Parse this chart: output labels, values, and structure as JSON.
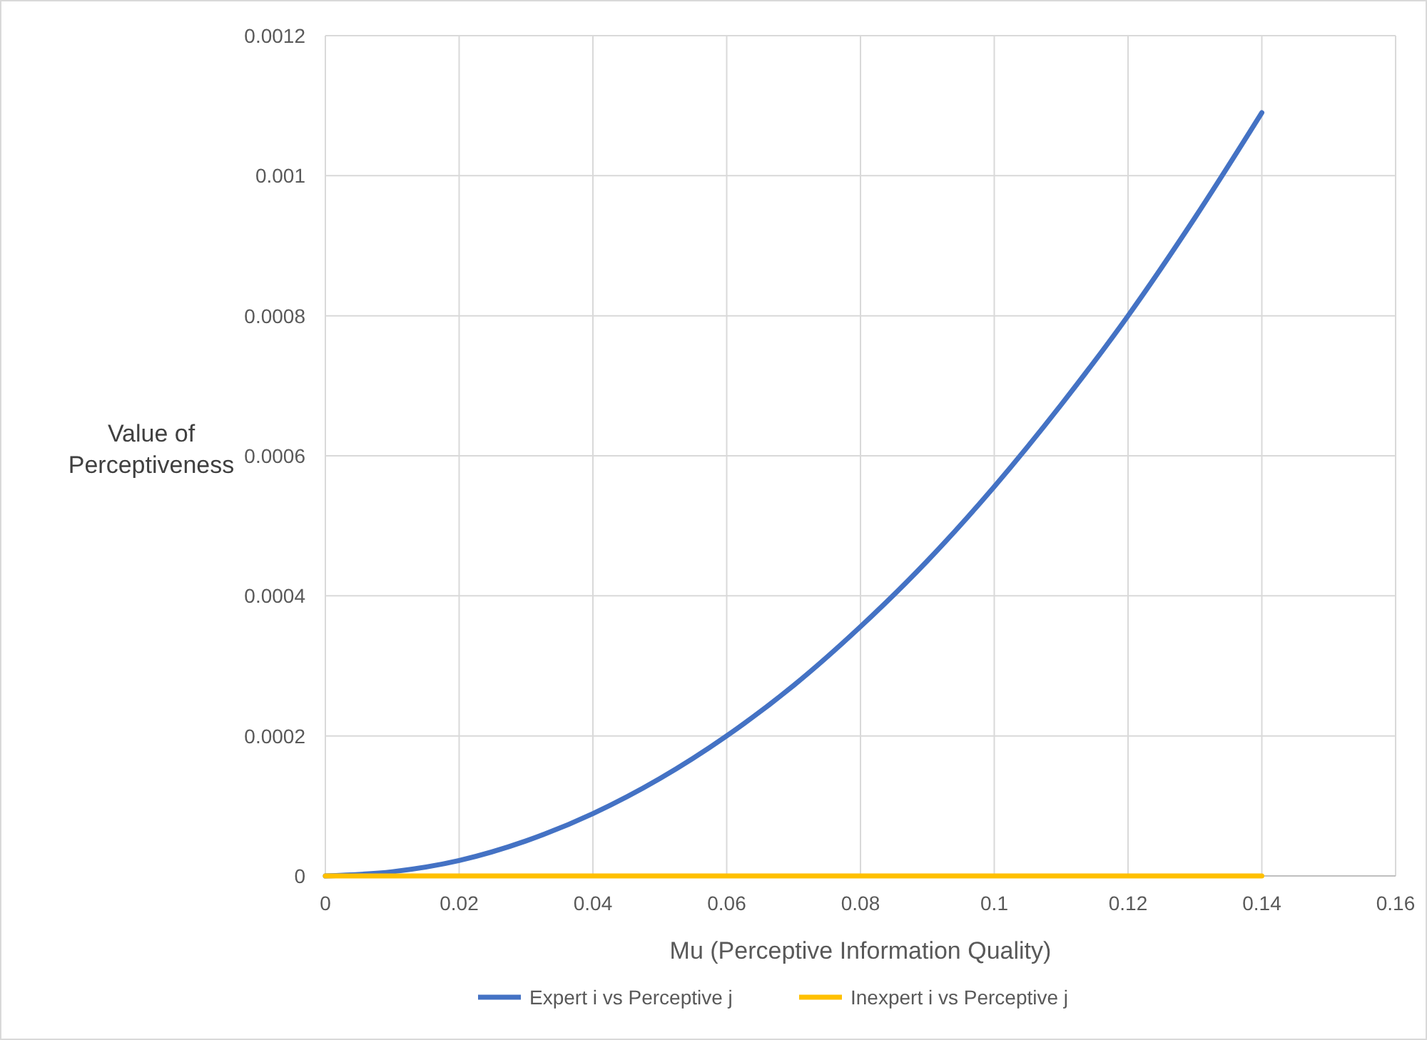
{
  "chart_data": {
    "type": "line",
    "xlabel": "Mu (Perceptive Information Quality)",
    "ylabel": "Value of Perceptiveness",
    "x": [
      0,
      0.01,
      0.02,
      0.03,
      0.04,
      0.05,
      0.06,
      0.07,
      0.08,
      0.09,
      0.1,
      0.11,
      0.12,
      0.13,
      0.14
    ],
    "series": [
      {
        "name": "Expert i vs Perceptive j",
        "color": "#4472c4",
        "values": [
          0,
          6e-06,
          2.2e-05,
          5e-05,
          8.9e-05,
          0.000139,
          0.0002,
          0.000272,
          0.000356,
          0.00045,
          0.000556,
          0.000673,
          0.0008,
          0.00094,
          0.00109
        ]
      },
      {
        "name": "Inexpert i vs Perceptive j",
        "color": "#ffc000",
        "values": [
          0,
          0,
          0,
          0,
          0,
          0,
          0,
          0,
          0,
          0,
          0,
          0,
          0,
          0,
          0
        ]
      }
    ],
    "xlim": [
      0,
      0.16
    ],
    "xticks": [
      0,
      0.02,
      0.04,
      0.06,
      0.08,
      0.1,
      0.12,
      0.14,
      0.16
    ],
    "ylim": [
      0,
      0.0012
    ],
    "yticks": [
      0,
      0.0002,
      0.0004,
      0.0006,
      0.0008,
      0.001,
      0.0012
    ],
    "grid": true,
    "legend": "bottom",
    "marker": "none",
    "line_style": "solid"
  }
}
